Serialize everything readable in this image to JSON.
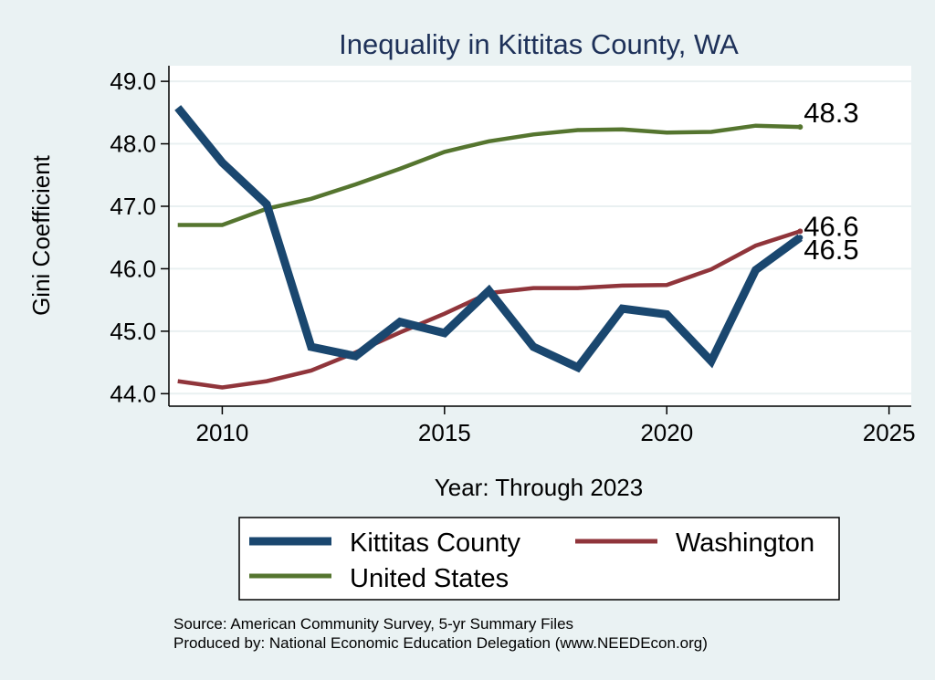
{
  "chart_data": {
    "type": "line",
    "title": "Inequality in Kittitas County, WA",
    "xlabel": "Year: Through 2023",
    "ylabel": "Gini Coefficient",
    "xlim": [
      2008.8,
      2025.5
    ],
    "ylim": [
      43.8,
      49.25
    ],
    "xticks": [
      2010,
      2015,
      2020,
      2025
    ],
    "xtick_labels": [
      "2010",
      "2015",
      "2020",
      "2025"
    ],
    "yticks": [
      44,
      45,
      46,
      47,
      48,
      49
    ],
    "ytick_labels": [
      "44.0",
      "45.0",
      "46.0",
      "47.0",
      "48.0",
      "49.0"
    ],
    "grid": true,
    "legend_position": "bottom",
    "x": [
      2009,
      2010,
      2011,
      2012,
      2013,
      2014,
      2015,
      2016,
      2017,
      2018,
      2019,
      2020,
      2021,
      2022,
      2023
    ],
    "series": [
      {
        "name": "Kittitas County",
        "color": "#1a476f",
        "values": [
          48.58,
          47.7,
          47.03,
          44.75,
          44.6,
          45.15,
          44.97,
          45.65,
          44.75,
          44.42,
          45.36,
          45.27,
          44.52,
          45.98,
          46.5
        ],
        "end_label": "46.5"
      },
      {
        "name": "Washington",
        "color": "#90353b",
        "values": [
          44.2,
          44.1,
          44.2,
          44.37,
          44.66,
          44.98,
          45.28,
          45.61,
          45.69,
          45.69,
          45.73,
          45.74,
          45.99,
          46.37,
          46.6
        ],
        "end_label": "46.6"
      },
      {
        "name": "United States",
        "color": "#55752f",
        "values": [
          46.7,
          46.7,
          46.96,
          47.12,
          47.35,
          47.6,
          47.87,
          48.04,
          48.15,
          48.22,
          48.23,
          48.18,
          48.19,
          48.29,
          48.27
        ],
        "end_label": "48.3"
      }
    ],
    "source_lines": [
      "Source: American Community Survey, 5-yr Summary Files",
      "Produced by: National Economic Education Delegation (www.NEEDEcon.org)"
    ]
  }
}
